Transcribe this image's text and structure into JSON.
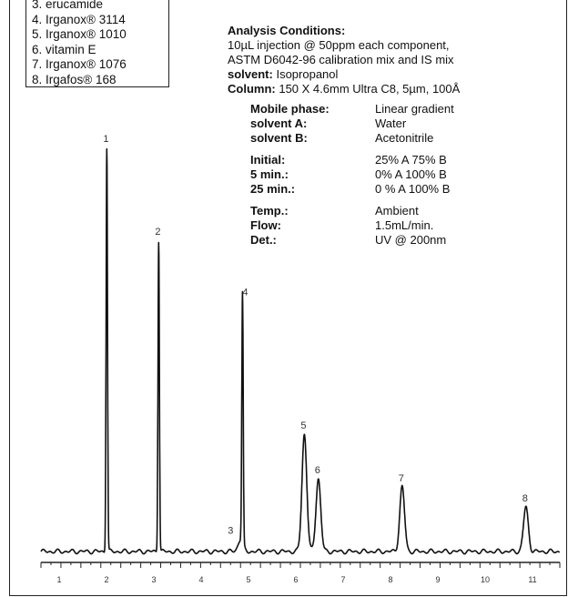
{
  "legend": [
    "3. erucamide",
    "4. Irganox® 3114",
    "5. Irganox® 1010",
    "6. vitamin E",
    "7. Irganox® 1076",
    "8. Irgafos® 168"
  ],
  "conditions": {
    "heading": "Analysis Conditions:",
    "line1": "10µL injection @ 50ppm each component,",
    "line2": "ASTM D6042-96 calibration mix and IS mix",
    "solvent_label": "solvent:",
    "solvent_value": "Isopropanol",
    "column_label": "Column:",
    "column_value": "150 X 4.6mm Ultra C8, 5µm, 100Å"
  },
  "params": {
    "mobile_phase_label": "Mobile phase:",
    "mobile_phase_value": "Linear gradient",
    "solvent_a_label": "solvent A:",
    "solvent_a_value": "Water",
    "solvent_b_label": "solvent B:",
    "solvent_b_value": "Acetonitrile",
    "initial_label": "Initial:",
    "initial_value": "25% A 75% B",
    "min5_label": "5 min.:",
    "min5_value": "0% A 100% B",
    "min25_label": "25 min.:",
    "min25_value": "0 % A 100% B",
    "temp_label": "Temp.:",
    "temp_value": "Ambient",
    "flow_label": "Flow:",
    "flow_value": "1.5mL/min.",
    "det_label": "Det.:",
    "det_value": "UV @ 200nm"
  },
  "chart_data": {
    "type": "line",
    "xlim": [
      0,
      26
    ],
    "ylim": [
      0,
      100
    ],
    "x_tick_labels": [
      "1",
      "2",
      "3",
      "4",
      "5",
      "6",
      "7",
      "8",
      "9",
      "10",
      "11"
    ],
    "peaks": [
      {
        "label": "1",
        "x": 3.3,
        "height": 100
      },
      {
        "label": "2",
        "x": 5.9,
        "height": 77
      },
      {
        "label": "3",
        "x": 10.0,
        "height": 3
      },
      {
        "label": "4",
        "x": 10.1,
        "height": 62
      },
      {
        "label": "5",
        "x": 13.2,
        "height": 29
      },
      {
        "label": "6",
        "x": 13.9,
        "height": 18
      },
      {
        "label": "7",
        "x": 18.1,
        "height": 16
      },
      {
        "label": "8",
        "x": 24.3,
        "height": 11
      }
    ]
  }
}
